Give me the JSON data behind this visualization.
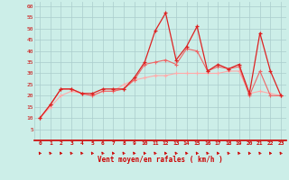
{
  "x": [
    0,
    1,
    2,
    3,
    4,
    5,
    6,
    7,
    8,
    9,
    10,
    11,
    12,
    13,
    14,
    15,
    16,
    17,
    18,
    19,
    20,
    21,
    22,
    23
  ],
  "line_dark": [
    10,
    16,
    23,
    23,
    21,
    21,
    23,
    23,
    23,
    28,
    35,
    49,
    57,
    36,
    42,
    51,
    31,
    34,
    32,
    34,
    21,
    48,
    31,
    20
  ],
  "line_mid": [
    10,
    16,
    23,
    23,
    21,
    20,
    22,
    22,
    23,
    27,
    34,
    35,
    36,
    34,
    41,
    40,
    31,
    33,
    32,
    33,
    20,
    31,
    20,
    20
  ],
  "line_light": [
    10,
    15,
    20,
    22,
    21,
    20,
    22,
    22,
    25,
    27,
    28,
    29,
    29,
    30,
    30,
    30,
    30,
    30,
    31,
    31,
    21,
    22,
    21,
    20
  ],
  "background_color": "#cceee8",
  "grid_color": "#aacccc",
  "line_dark_color": "#dd2222",
  "line_mid_color": "#ee6666",
  "line_light_color": "#ffaaaa",
  "xlabel": "Vent moyen/en rafales ( km/h )",
  "ylim": [
    0,
    62
  ],
  "yticks": [
    5,
    10,
    15,
    20,
    25,
    30,
    35,
    40,
    45,
    50,
    55,
    60
  ],
  "figsize": [
    3.2,
    2.0
  ],
  "dpi": 100
}
